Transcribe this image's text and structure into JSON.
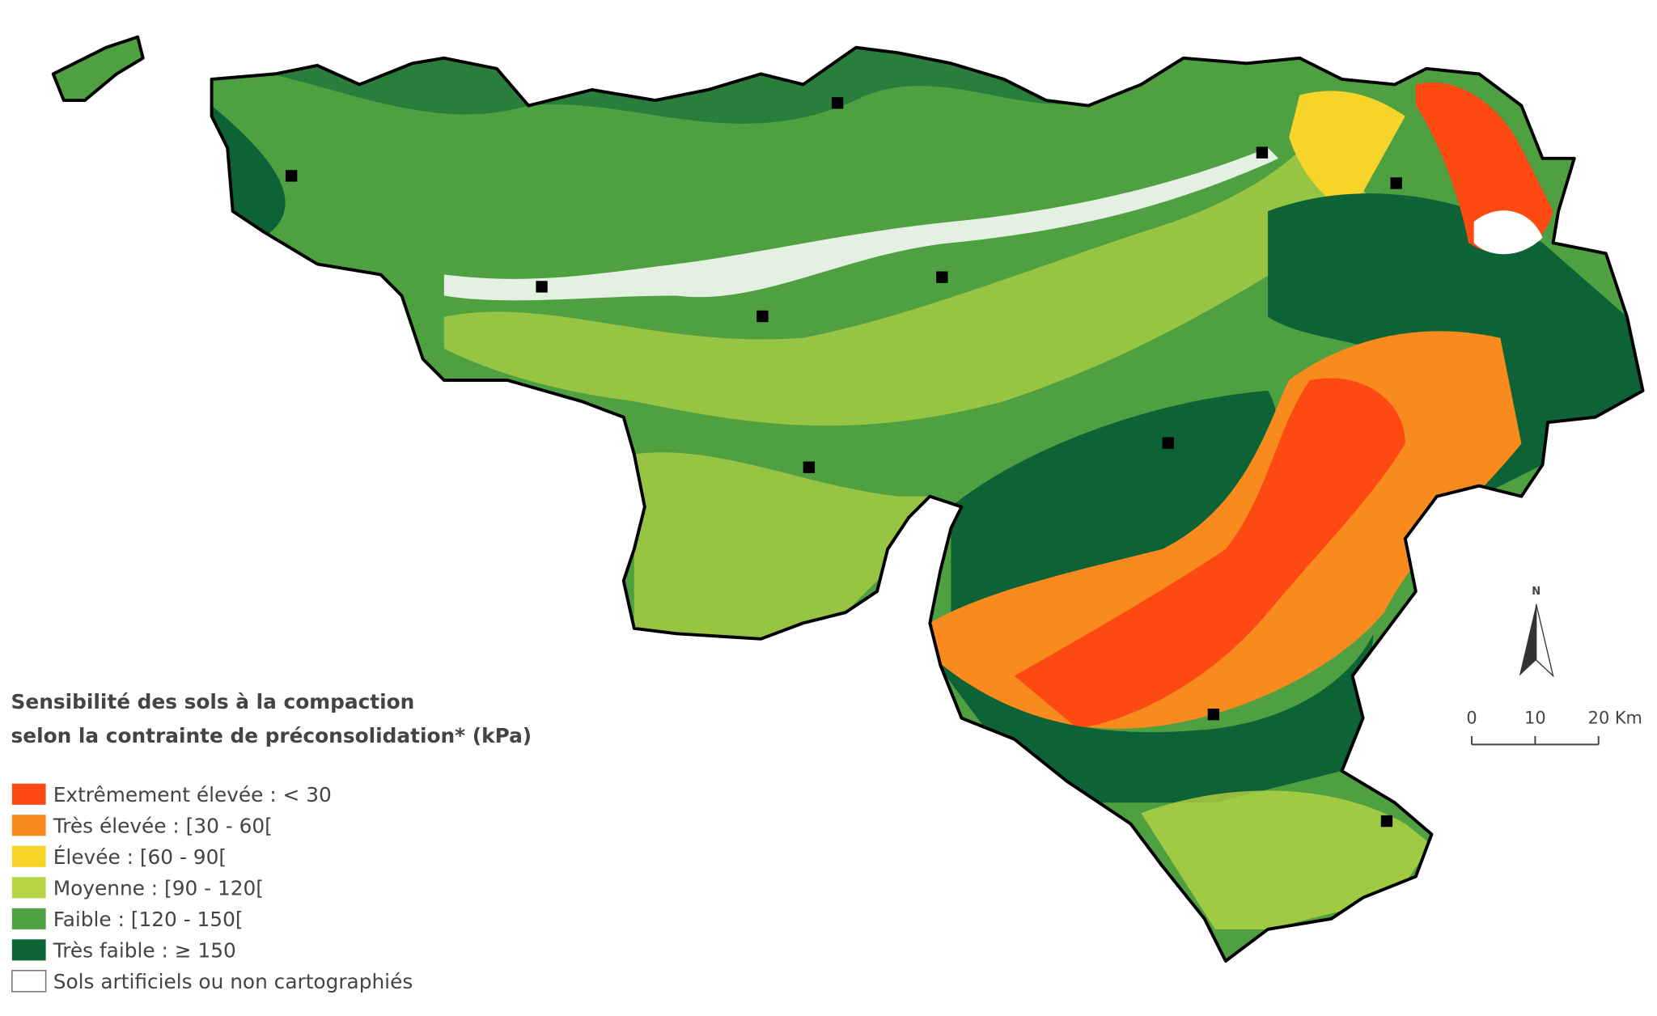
{
  "legend": {
    "title": [
      "Sensibilité des sols à la compaction",
      "selon la contrainte de préconsolidation* (kPa)"
    ],
    "items": [
      {
        "label": "Extrêmement élevée : < 30",
        "color": "#fd4a12"
      },
      {
        "label": "Très élevée : [30 - 60[",
        "color": "#f88a1e"
      },
      {
        "label": "Élevée : [60 - 90[",
        "color": "#f6d42a"
      },
      {
        "label": "Moyenne : [90 - 120[",
        "color": "#b7d444"
      },
      {
        "label": "Faible : [120 - 150[",
        "color": "#4ea040"
      },
      {
        "label": "Très faible : ≥ 150",
        "color": "#0d6236"
      },
      {
        "label": "Sols artificiels ou non cartographiés",
        "color": "#ffffff"
      }
    ]
  },
  "scale_bar": {
    "labels": [
      "0",
      "10",
      "20 Km"
    ]
  },
  "north_arrow": {
    "label": "N"
  }
}
